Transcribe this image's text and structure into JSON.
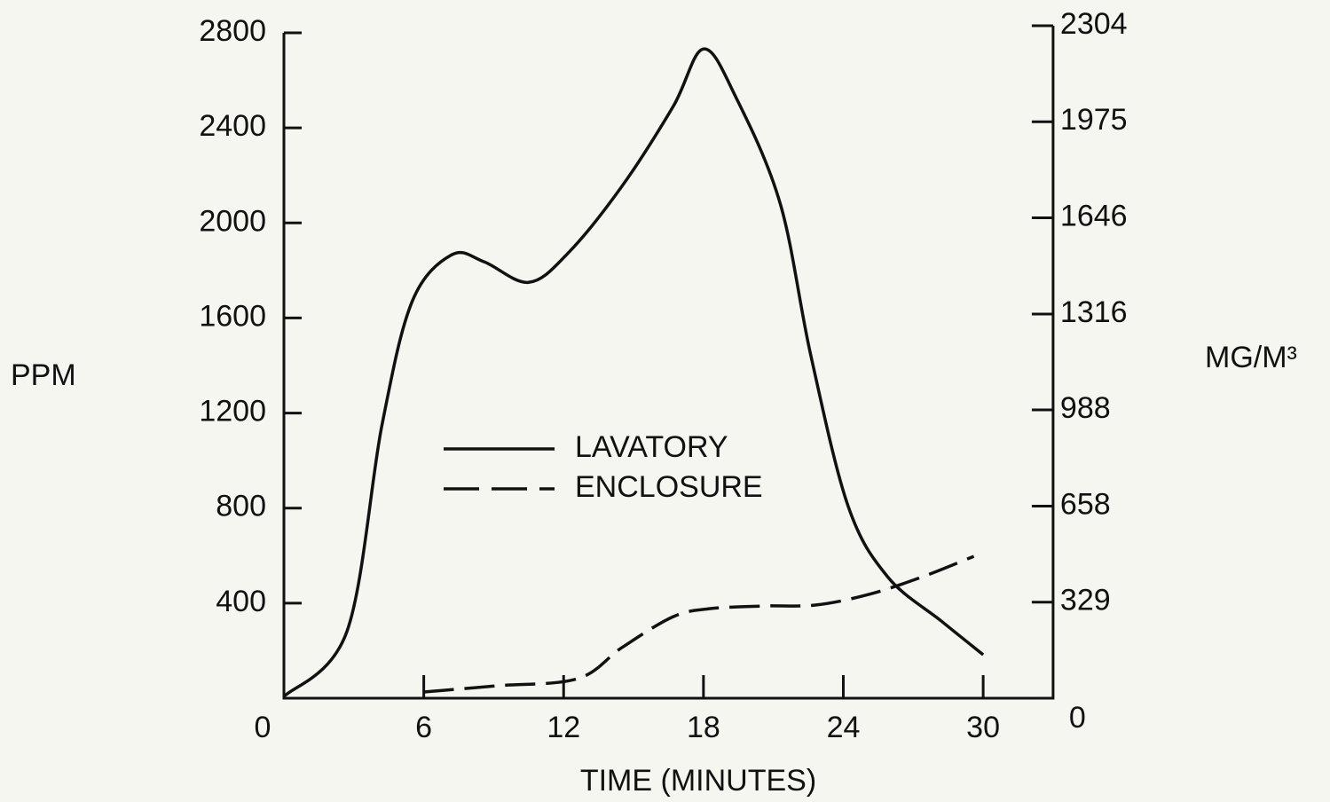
{
  "chart_data": {
    "type": "line",
    "x_label": "TIME (MINUTES)",
    "y_label": "PPM",
    "y2_label": "MG/M³",
    "xlim": [
      0,
      33
    ],
    "xticks": [
      0,
      6,
      12,
      18,
      24,
      30
    ],
    "ylim": [
      0,
      2800
    ],
    "yticks": [
      400,
      800,
      1200,
      1600,
      2000,
      2400,
      2800
    ],
    "y2lim": [
      0,
      2304
    ],
    "y2ticks": [
      0,
      329,
      658,
      988,
      1316,
      1646,
      1975,
      2304
    ],
    "grid": false,
    "series": [
      {
        "name": "LAVATORY",
        "color": "#111111",
        "dash": "solid",
        "x": [
          0,
          2.7,
          4.2,
          5.5,
          7.2,
          8.6,
          10.5,
          12.2,
          14.5,
          16.7,
          18,
          19.4,
          21.3,
          22.6,
          24.2,
          25.9,
          28.2,
          30
        ],
        "values": [
          7,
          280,
          1146,
          1669,
          1866,
          1836,
          1750,
          1874,
          2154,
          2490,
          2732,
          2527,
          2079,
          1445,
          810,
          511,
          325,
          183
        ]
      },
      {
        "name": "ENCLOSURE",
        "color": "#111111",
        "dash": "dashed",
        "x": [
          6,
          9.1,
          12.6,
          14.5,
          16.7,
          18.3,
          20.6,
          22.8,
          25.1,
          27.4,
          29.6
        ],
        "values": [
          26,
          52,
          82,
          213,
          343,
          377,
          388,
          392,
          437,
          511,
          597
        ]
      }
    ]
  }
}
